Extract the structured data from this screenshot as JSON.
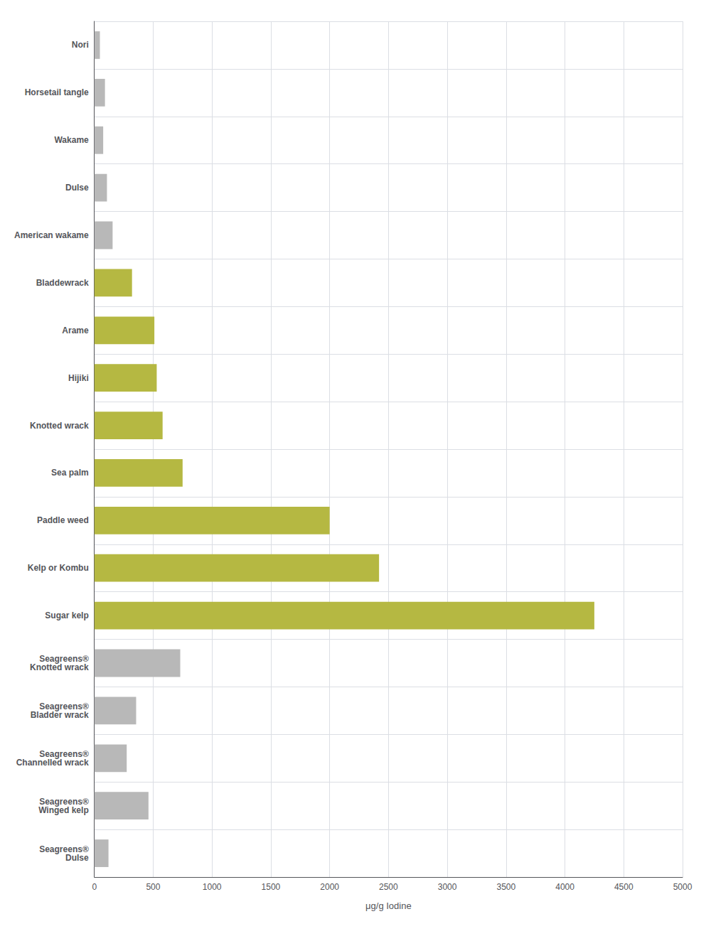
{
  "chart_data": {
    "type": "bar",
    "orientation": "horizontal",
    "categories": [
      "Nori",
      "Horsetail tangle",
      "Wakame",
      "Dulse",
      "American wakame",
      "Bladdewrack",
      "Arame",
      "Hijiki",
      "Knotted wrack",
      "Sea palm",
      "Paddle weed",
      "Kelp or Kombu",
      "Sugar kelp",
      "Seagreens®\nKnotted wrack",
      "Seagreens®\nBladder wrack",
      "Seagreens®\nChannelled wrack",
      "Seagreens®\nWinged kelp",
      "Seagreens®\nDulse"
    ],
    "values": [
      47,
      90,
      75,
      107,
      155,
      320,
      510,
      530,
      580,
      750,
      2000,
      2420,
      4250,
      730,
      355,
      275,
      460,
      120
    ],
    "colors": [
      "#b8b8b8",
      "#b8b8b8",
      "#b8b8b8",
      "#b8b8b8",
      "#b8b8b8",
      "#b5b842",
      "#b5b842",
      "#b5b842",
      "#b5b842",
      "#b5b842",
      "#b5b842",
      "#b5b842",
      "#b5b842",
      "#b8b8b8",
      "#b8b8b8",
      "#b8b8b8",
      "#b8b8b8",
      "#b8b8b8"
    ],
    "xlabel": "μg/g Iodine",
    "xlim": [
      0,
      5000
    ],
    "xticks": [
      0,
      500,
      1000,
      1500,
      2000,
      2500,
      3000,
      3500,
      4000,
      4500,
      5000
    ],
    "grid": true
  }
}
